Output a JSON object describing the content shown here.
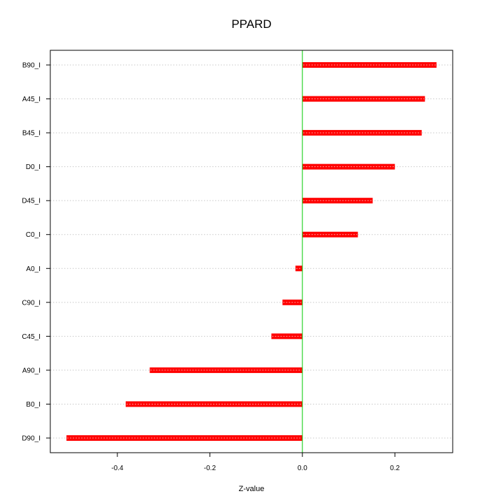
{
  "chart_data": {
    "type": "bar",
    "orientation": "horizontal",
    "title": "PPARD",
    "xlabel": "Z-value",
    "ylabel": "",
    "categories": [
      "B90_I",
      "A45_I",
      "B45_I",
      "D0_I",
      "D45_I",
      "C0_I",
      "A0_I",
      "C90_I",
      "C45_I",
      "A90_I",
      "B0_I",
      "D90_I"
    ],
    "values": [
      0.29,
      0.265,
      0.258,
      0.2,
      0.152,
      0.12,
      -0.015,
      -0.043,
      -0.067,
      -0.33,
      -0.382,
      -0.51
    ],
    "xlim": [
      -0.545,
      0.325
    ],
    "xticks": [
      -0.4,
      -0.2,
      0.0,
      0.2
    ],
    "xtick_labels": [
      "-0.4",
      "-0.2",
      "0.0",
      "0.2"
    ],
    "reference_line": 0.0,
    "grid": "horizontal dotted",
    "colors": {
      "bar": "#ff0000",
      "bar_center": "#ff9a9a",
      "reference_line": "#00cc00",
      "grid": "#c8c8c8",
      "axis": "#000000"
    }
  }
}
